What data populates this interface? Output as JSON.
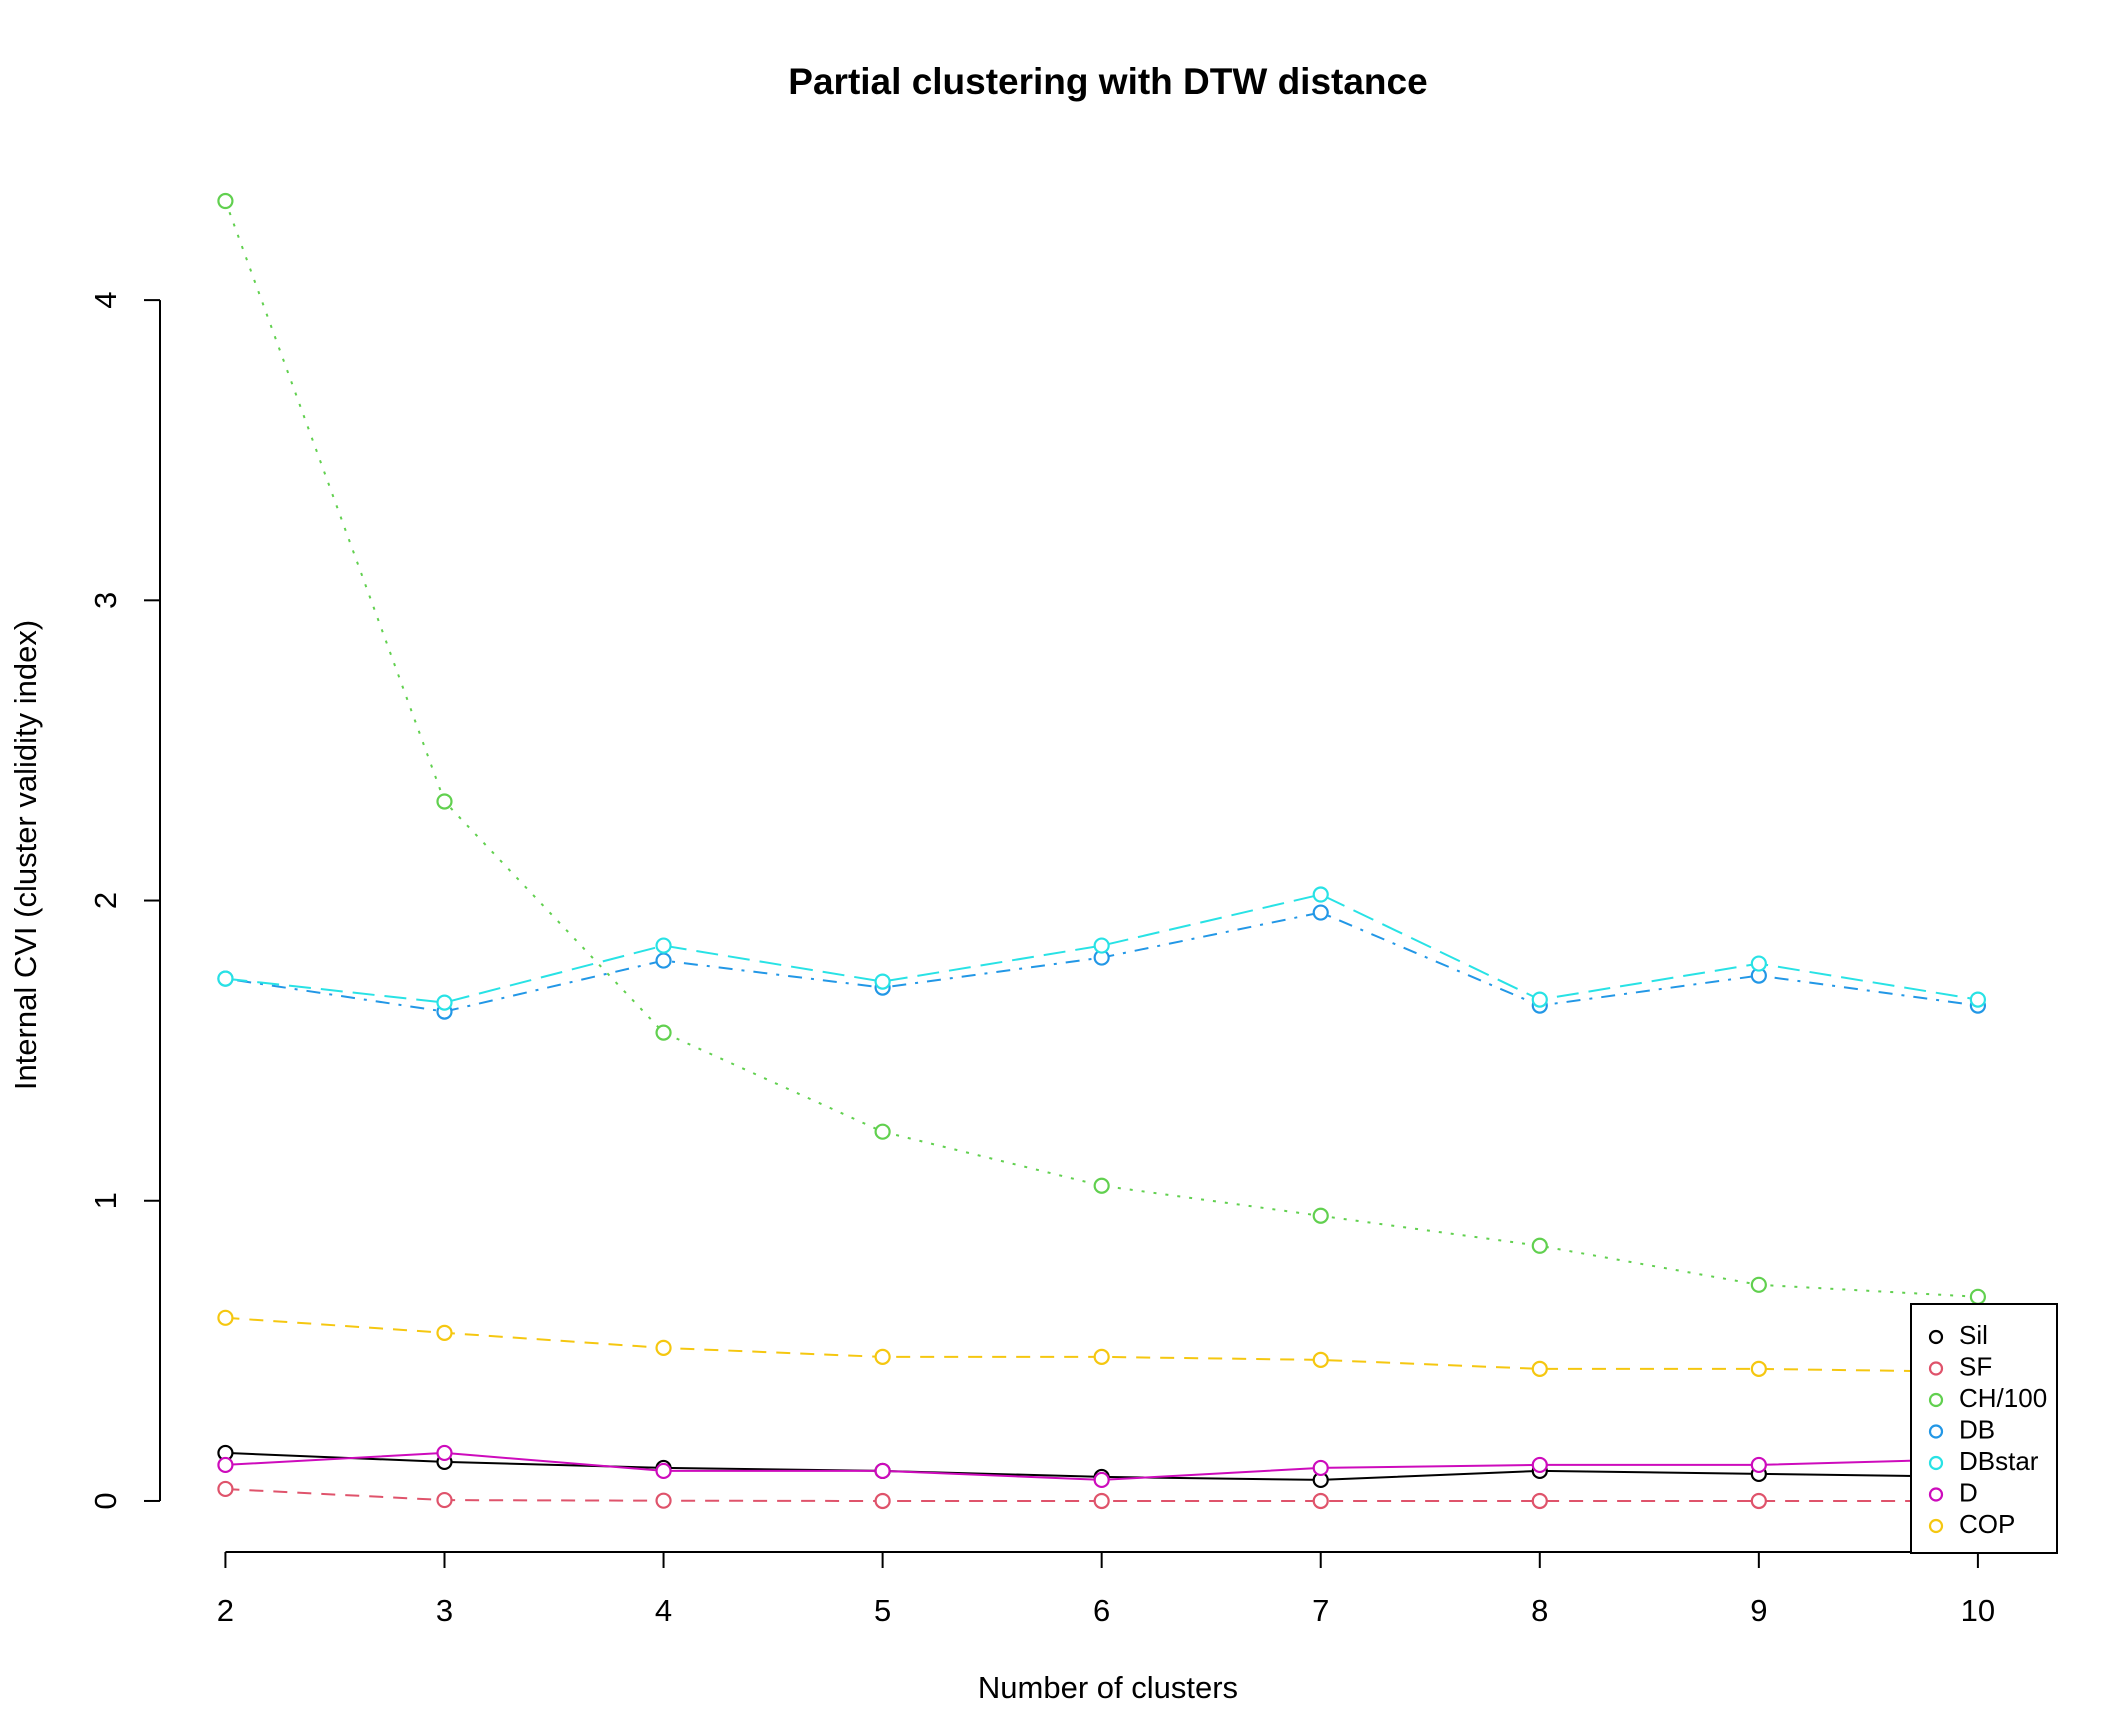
{
  "chart_data": {
    "type": "line",
    "title": "Partial clustering with DTW distance",
    "xlabel": "Number of clusters",
    "ylabel": "Internal CVI (cluster validity index)",
    "x": [
      2,
      3,
      4,
      5,
      6,
      7,
      8,
      9,
      10
    ],
    "xlim": [
      1.82,
      10.32
    ],
    "ylim": [
      -0.17,
      4.5
    ],
    "xticks": [
      "2",
      "3",
      "4",
      "5",
      "6",
      "7",
      "8",
      "9",
      "10"
    ],
    "yticks": [
      "0",
      "1",
      "2",
      "3",
      "4"
    ],
    "grid": false,
    "legend_position": "bottom-right",
    "series": [
      {
        "name": "Sil",
        "color": "#000000",
        "dash": "solid",
        "values": [
          0.16,
          0.13,
          0.11,
          0.1,
          0.08,
          0.07,
          0.1,
          0.09,
          0.08
        ]
      },
      {
        "name": "SF",
        "color": "#DF536B",
        "dash": "dashed",
        "values": [
          0.04,
          0.003,
          0.001,
          0.0,
          0.0,
          0.0,
          0.0,
          0.0,
          0.0
        ]
      },
      {
        "name": "CH/100",
        "color": "#61D04F",
        "dash": "dotted",
        "values": [
          4.33,
          2.33,
          1.56,
          1.23,
          1.05,
          0.95,
          0.85,
          0.72,
          0.68
        ]
      },
      {
        "name": "DB",
        "color": "#2297E6",
        "dash": "dotdash",
        "values": [
          1.74,
          1.63,
          1.8,
          1.71,
          1.81,
          1.96,
          1.65,
          1.75,
          1.65
        ]
      },
      {
        "name": "DBstar",
        "color": "#28E2E5",
        "dash": "longdash",
        "values": [
          1.74,
          1.66,
          1.85,
          1.73,
          1.85,
          2.02,
          1.67,
          1.79,
          1.67
        ]
      },
      {
        "name": "D",
        "color": "#CD0BBC",
        "dash": "solid",
        "values": [
          0.12,
          0.16,
          0.1,
          0.1,
          0.07,
          0.11,
          0.12,
          0.12,
          0.14
        ]
      },
      {
        "name": "COP",
        "color": "#F5C710",
        "dash": "dashed",
        "values": [
          0.61,
          0.56,
          0.51,
          0.48,
          0.48,
          0.47,
          0.44,
          0.44,
          0.43
        ]
      }
    ]
  }
}
